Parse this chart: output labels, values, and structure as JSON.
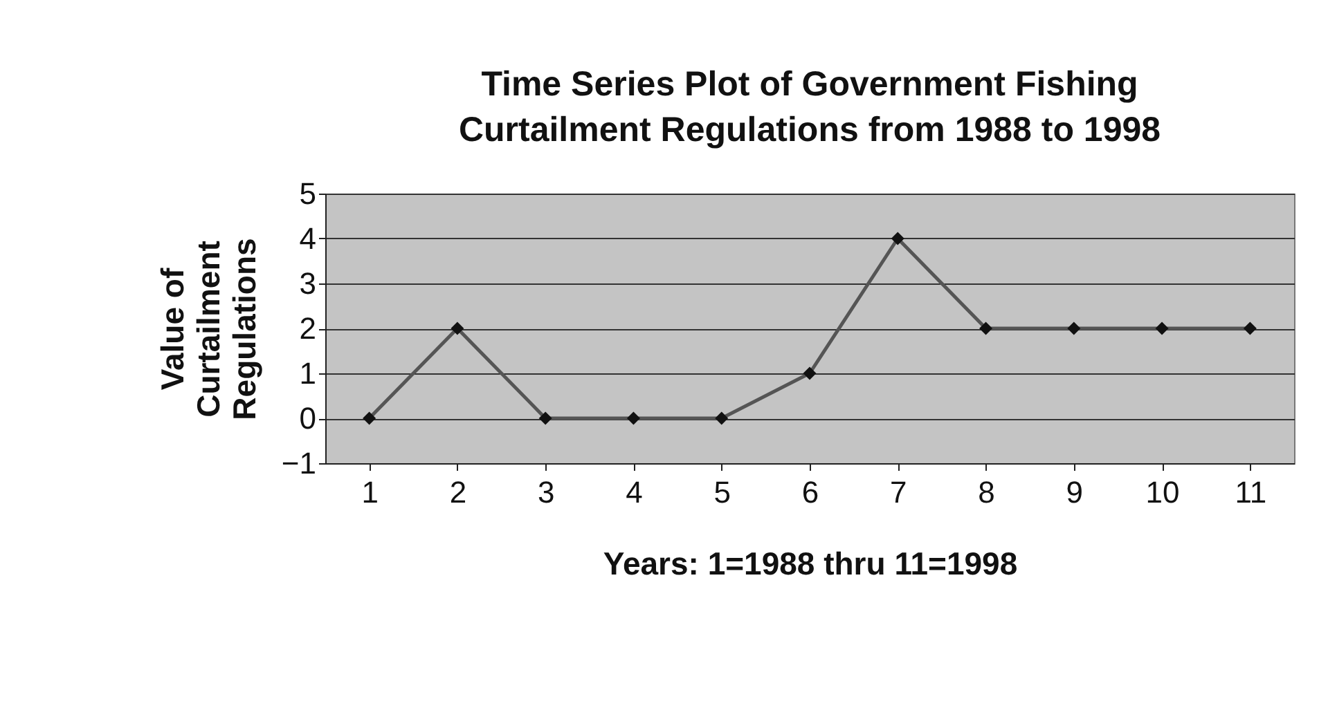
{
  "chart_data": {
    "type": "line",
    "title": "Time Series Plot of Government Fishing\nCurtailment Regulations from 1988 to 1998",
    "xlabel": "Years: 1=1988 thru 11=1998",
    "ylabel": "Value of\nCurtailment\nRegulations",
    "categories": [
      "1",
      "2",
      "3",
      "4",
      "5",
      "6",
      "7",
      "8",
      "9",
      "10",
      "11"
    ],
    "series": [
      {
        "color": "#555555",
        "values": [
          0,
          2,
          0,
          0,
          0,
          1,
          4,
          2,
          2,
          2,
          2
        ]
      }
    ],
    "ylim": [
      -1,
      5
    ],
    "yticks": [
      -1,
      0,
      1,
      2,
      3,
      4,
      5
    ],
    "grid": "y",
    "marker": "diamond",
    "line_style": "solid"
  }
}
